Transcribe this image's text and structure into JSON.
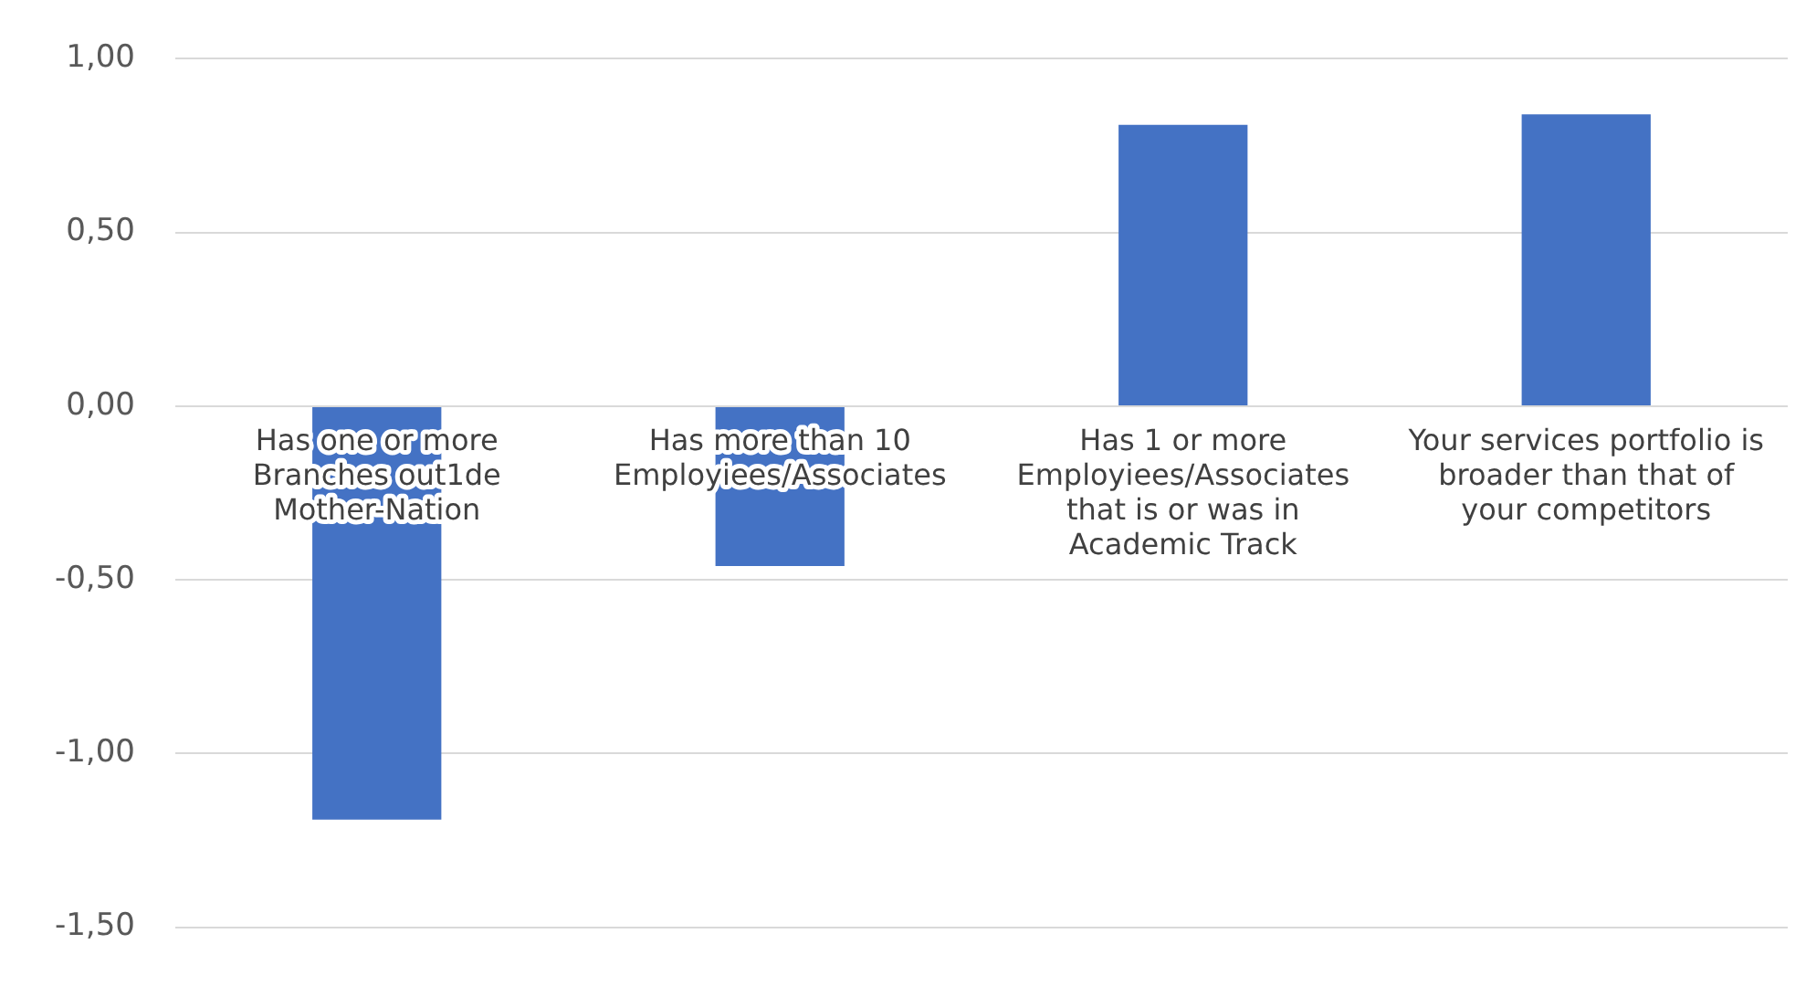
{
  "chart_data": {
    "type": "bar",
    "categories": [
      "Has one or more Branches out1de Mother-Nation",
      "Has more than 10 Employiees/Associates",
      "Has 1 or more Employiees/Associates that is or was in Academic Track",
      "Your services portfolio is broader than that of your competitors"
    ],
    "values": [
      -1.19,
      -0.46,
      0.81,
      0.84
    ],
    "color": "#4472c4",
    "ylim": [
      -1.5,
      1
    ],
    "yticks": [
      {
        "value": -1.5,
        "label": "-1,50"
      },
      {
        "value": -1,
        "label": "-1,00"
      },
      {
        "value": -0.5,
        "label": "-0,50"
      },
      {
        "value": 0,
        "label": "0,00"
      },
      {
        "value": 0.5,
        "label": "0,50"
      },
      {
        "value": 1,
        "label": "1,00"
      }
    ],
    "grid": "y",
    "legend": false
  }
}
